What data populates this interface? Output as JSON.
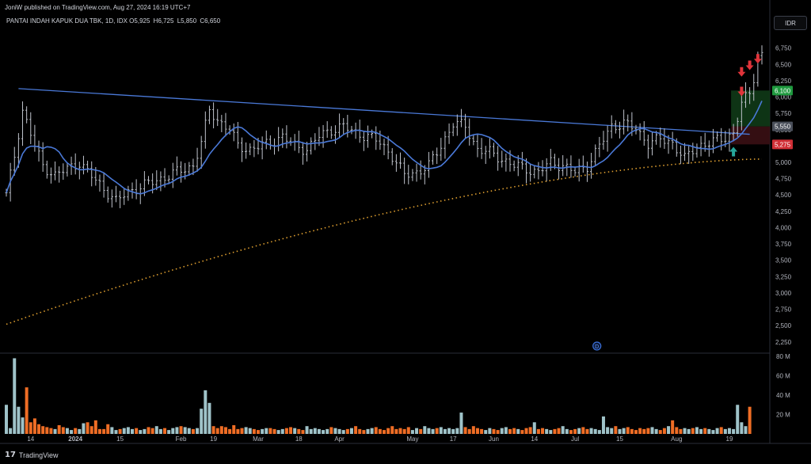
{
  "header": {
    "published": "JoniW published on TradingView.com, Aug 27, 2024 16:19 UTC+7",
    "symbol": "PANTAI INDAH KAPUK DUA TBK, 1D, IDX",
    "ohlc": [
      {
        "k": "O",
        "v": "5,925"
      },
      {
        "k": "H",
        "v": "6,725"
      },
      {
        "k": "L",
        "v": "5,850"
      },
      {
        "k": "C",
        "v": "6,650"
      }
    ],
    "currency": "IDR"
  },
  "footer": {
    "brand": "TradingView"
  },
  "colors": {
    "background": "#000000",
    "candle": "#bfc3cc",
    "ma": "#4a79d8",
    "ma200": "#e0a030",
    "trendline": "#4a79d8",
    "vol_up": "#9fc3c9",
    "vol_down": "#ef6d25",
    "arrow_down": "#e0343a",
    "arrow_up": "#26a69a",
    "tp_zone": "#0f3a17",
    "sl_zone": "#3a0f14"
  },
  "chart_data": {
    "type": "candlestick",
    "interval": "1D",
    "ylim": [
      2150,
      7050
    ],
    "y_ticks": [
      "6,750",
      "6,500",
      "6,250",
      "6,000",
      "5,750",
      "5,500",
      "5,250",
      "5,000",
      "4,750",
      "4,500",
      "4,250",
      "4,000",
      "3,750",
      "3,500",
      "3,250",
      "3,000",
      "2,750",
      "2,500",
      "2,250"
    ],
    "x_labels": [
      {
        "i": 6,
        "label": "14"
      },
      {
        "i": 17,
        "label": "2024"
      },
      {
        "i": 28,
        "label": "15"
      },
      {
        "i": 43,
        "label": "Feb"
      },
      {
        "i": 51,
        "label": "19"
      },
      {
        "i": 62,
        "label": "Mar"
      },
      {
        "i": 72,
        "label": "18"
      },
      {
        "i": 82,
        "label": "Apr"
      },
      {
        "i": 100,
        "label": "May"
      },
      {
        "i": 110,
        "label": "17"
      },
      {
        "i": 120,
        "label": "Jun"
      },
      {
        "i": 130,
        "label": "14"
      },
      {
        "i": 140,
        "label": "Jul"
      },
      {
        "i": 151,
        "label": "15"
      },
      {
        "i": 165,
        "label": "Aug"
      },
      {
        "i": 178,
        "label": "19"
      }
    ],
    "anchors": [
      [
        0,
        4500
      ],
      [
        2,
        5100
      ],
      [
        4,
        5800
      ],
      [
        7,
        5250
      ],
      [
        9,
        4950
      ],
      [
        12,
        4800
      ],
      [
        15,
        4900
      ],
      [
        18,
        5000
      ],
      [
        20,
        4850
      ],
      [
        24,
        4600
      ],
      [
        27,
        4400
      ],
      [
        30,
        4550
      ],
      [
        34,
        4650
      ],
      [
        38,
        4750
      ],
      [
        42,
        4850
      ],
      [
        46,
        4950
      ],
      [
        48,
        5300
      ],
      [
        50,
        5800
      ],
      [
        52,
        5650
      ],
      [
        55,
        5500
      ],
      [
        57,
        5250
      ],
      [
        60,
        5200
      ],
      [
        65,
        5300
      ],
      [
        68,
        5400
      ],
      [
        71,
        5250
      ],
      [
        74,
        5200
      ],
      [
        77,
        5400
      ],
      [
        80,
        5500
      ],
      [
        83,
        5550
      ],
      [
        86,
        5450
      ],
      [
        89,
        5400
      ],
      [
        92,
        5300
      ],
      [
        95,
        5100
      ],
      [
        98,
        4800
      ],
      [
        101,
        4850
      ],
      [
        104,
        4950
      ],
      [
        107,
        5250
      ],
      [
        110,
        5600
      ],
      [
        113,
        5550
      ],
      [
        116,
        5200
      ],
      [
        119,
        5150
      ],
      [
        122,
        5050
      ],
      [
        125,
        4950
      ],
      [
        128,
        4900
      ],
      [
        131,
        4850
      ],
      [
        134,
        5000
      ],
      [
        137,
        4950
      ],
      [
        140,
        4850
      ],
      [
        143,
        4950
      ],
      [
        146,
        5250
      ],
      [
        149,
        5550
      ],
      [
        152,
        5600
      ],
      [
        155,
        5500
      ],
      [
        158,
        5300
      ],
      [
        161,
        5350
      ],
      [
        164,
        5300
      ],
      [
        167,
        5050
      ],
      [
        170,
        5250
      ],
      [
        173,
        5300
      ],
      [
        176,
        5350
      ],
      [
        179,
        5450
      ],
      [
        181,
        5900
      ],
      [
        183,
        6050
      ],
      [
        184,
        6300
      ],
      [
        185,
        6650
      ]
    ],
    "vol_max": 80,
    "vol_ticks": [
      "80 M",
      "60 M",
      "40 M",
      "20 M"
    ],
    "volume": [
      30,
      6,
      78,
      28,
      17,
      48,
      12,
      16,
      10,
      8,
      7,
      6,
      5,
      9,
      7,
      6,
      4,
      6,
      5,
      11,
      12,
      8,
      14,
      5,
      5,
      10,
      7,
      4,
      5,
      6,
      7,
      5,
      6,
      4,
      5,
      7,
      6,
      8,
      5,
      6,
      4,
      6,
      7,
      8,
      7,
      6,
      5,
      6,
      26,
      45,
      32,
      8,
      6,
      8,
      7,
      5,
      9,
      5,
      6,
      7,
      6,
      5,
      4,
      5,
      6,
      6,
      5,
      4,
      5,
      6,
      7,
      6,
      5,
      4,
      8,
      5,
      6,
      5,
      4,
      5,
      7,
      6,
      5,
      4,
      5,
      6,
      8,
      5,
      4,
      5,
      6,
      7,
      5,
      4,
      6,
      8,
      5,
      6,
      5,
      7,
      4,
      6,
      5,
      8,
      6,
      5,
      6,
      7,
      5,
      6,
      5,
      6,
      22,
      7,
      5,
      8,
      6,
      5,
      4,
      6,
      5,
      4,
      6,
      7,
      5,
      6,
      5,
      4,
      6,
      7,
      12,
      5,
      6,
      5,
      4,
      5,
      6,
      8,
      5,
      4,
      5,
      6,
      7,
      5,
      6,
      5,
      4,
      18,
      7,
      6,
      8,
      5,
      6,
      7,
      5,
      4,
      6,
      5,
      6,
      7,
      5,
      4,
      6,
      8,
      14,
      7,
      5,
      6,
      5,
      6,
      7,
      5,
      6,
      5,
      4,
      6,
      7,
      5,
      6,
      5,
      30,
      12,
      8,
      28
    ],
    "ma200_start": 2520,
    "ma200_end": 5050,
    "trendline": {
      "from": {
        "i": 3,
        "y": 6130
      },
      "to": {
        "i": 183,
        "y": 5430
      }
    },
    "levels": [
      {
        "price": 6100,
        "label": "6,100",
        "color": "#1f9a3f"
      },
      {
        "price": 5550,
        "label": "5,550",
        "color": "#4a4f5a"
      },
      {
        "price": 5275,
        "label": "5,275",
        "color": "#d12f36"
      }
    ],
    "zones": [
      {
        "from_i": 179,
        "to_i": 187,
        "low": 5550,
        "high": 6100,
        "color": "#0f3a17"
      },
      {
        "from_i": 179,
        "to_i": 187,
        "low": 5275,
        "high": 5550,
        "color": "#3a0f14"
      }
    ],
    "arrows_down": [
      {
        "i": 181,
        "y": 6350
      },
      {
        "i": 181,
        "y": 6050
      },
      {
        "i": 183,
        "y": 6450
      },
      {
        "i": 185,
        "y": 6550
      }
    ],
    "arrows_up": [
      {
        "i": 179,
        "y": 5200
      }
    ],
    "dividend_marker": {
      "i": 145,
      "label": "D"
    }
  }
}
